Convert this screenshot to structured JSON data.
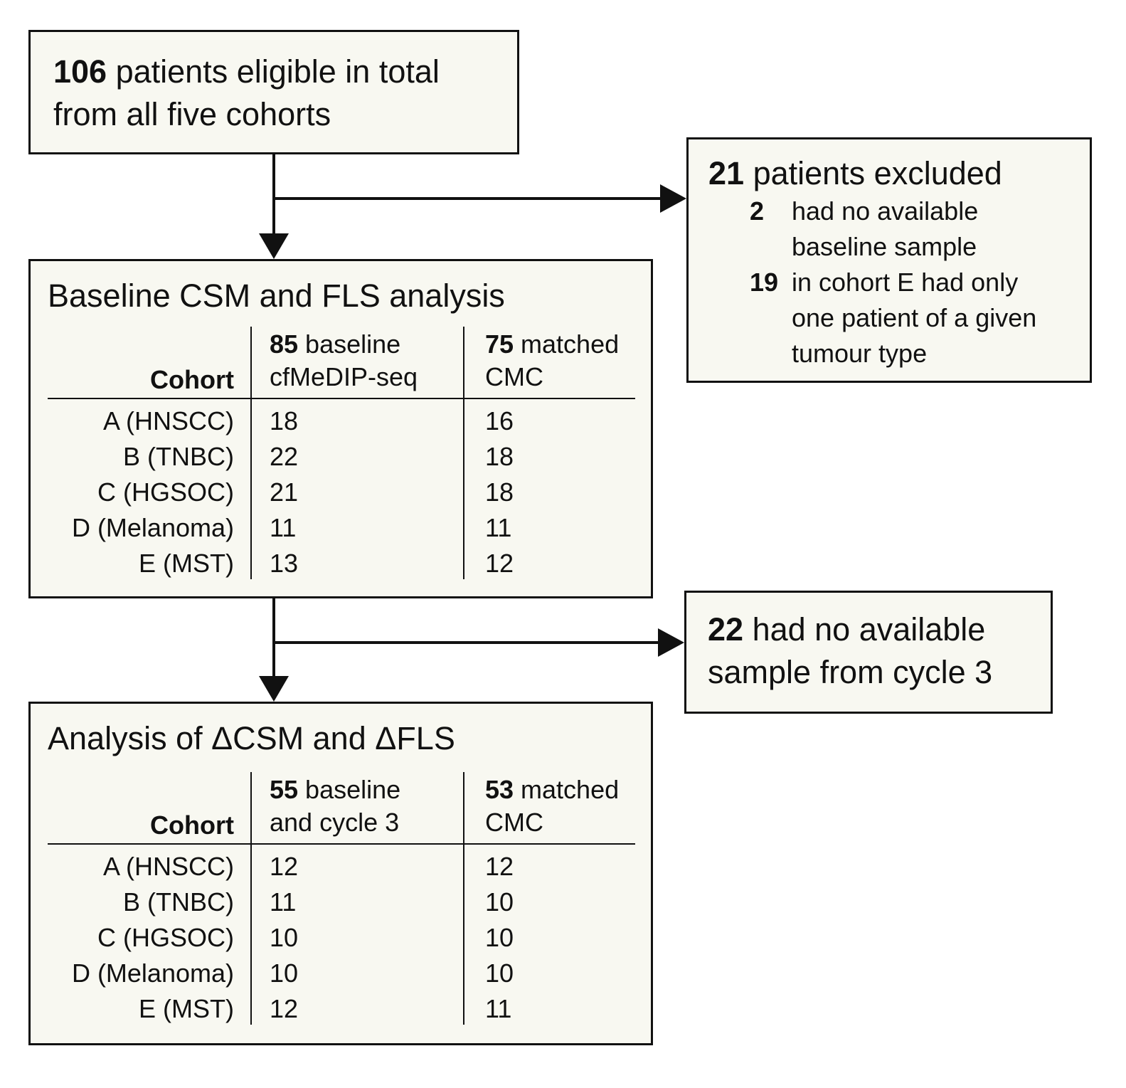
{
  "total_box": {
    "count": "106",
    "line1_rest": " patients eligible in total",
    "line2": "from all five cohorts"
  },
  "excluded_box": {
    "count": "21",
    "head_rest": " patients excluded",
    "reasons": [
      {
        "num": "2",
        "line1": "had no available",
        "line2": "baseline sample",
        "line3": ""
      },
      {
        "num": "19",
        "line1": "in cohort E had only",
        "line2": "one patient of a given",
        "line3": "tumour type"
      }
    ]
  },
  "cycle3_box": {
    "count": "22",
    "line1_rest": " had no available",
    "line2": "sample from cycle 3"
  },
  "baseline_box": {
    "title": "Baseline CSM and FLS analysis",
    "cohort_header": "Cohort",
    "col1_count": "85",
    "col1_line1_rest": " baseline",
    "col1_line2": "cfMeDIP-seq",
    "col2_count": "75",
    "col2_line1_rest": " matched",
    "col2_line2": "CMC",
    "rows": [
      {
        "cohort": "A (HNSCC)",
        "v1": "18",
        "v2": "16"
      },
      {
        "cohort": "B (TNBC)",
        "v1": "22",
        "v2": "18"
      },
      {
        "cohort": "C (HGSOC)",
        "v1": "21",
        "v2": "18"
      },
      {
        "cohort": "D (Melanoma)",
        "v1": "11",
        "v2": "11"
      },
      {
        "cohort": "E (MST)",
        "v1": "13",
        "v2": "12"
      }
    ]
  },
  "delta_box": {
    "title": "Analysis of ΔCSM and ΔFLS",
    "cohort_header": "Cohort",
    "col1_count": "55",
    "col1_line1_rest": " baseline",
    "col1_line2": "and cycle 3",
    "col2_count": "53",
    "col2_line1_rest": " matched",
    "col2_line2": "CMC",
    "rows": [
      {
        "cohort": "A (HNSCC)",
        "v1": "12",
        "v2": "12"
      },
      {
        "cohort": "B (TNBC)",
        "v1": "11",
        "v2": "10"
      },
      {
        "cohort": "C (HGSOC)",
        "v1": "10",
        "v2": "10"
      },
      {
        "cohort": "D (Melanoma)",
        "v1": "10",
        "v2": "10"
      },
      {
        "cohort": "E (MST)",
        "v1": "12",
        "v2": "11"
      }
    ]
  }
}
